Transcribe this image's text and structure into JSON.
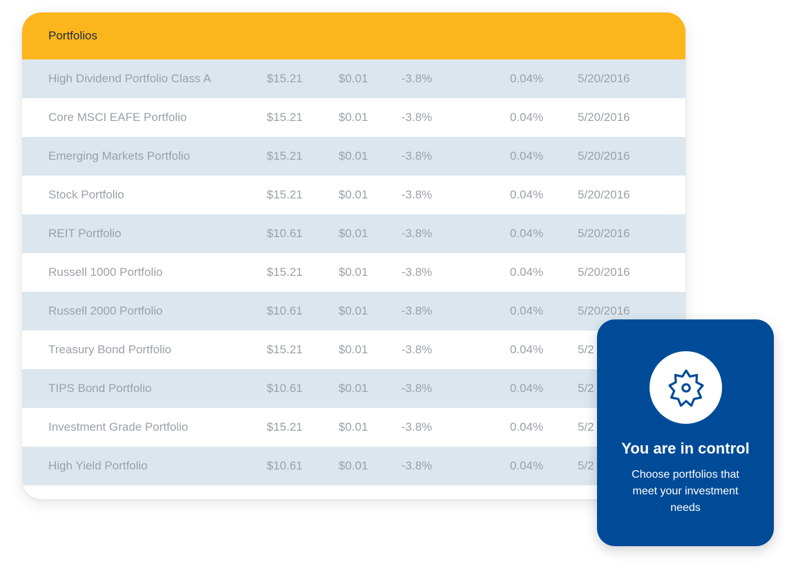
{
  "table": {
    "title": "Portfolios",
    "rows": [
      {
        "name": "High Dividend Portfolio Class A",
        "price": "$15.21",
        "change": "$0.01",
        "pct": "-3.8%",
        "yield": "0.04%",
        "date": "5/20/2016"
      },
      {
        "name": "Core MSCI EAFE Portfolio",
        "price": "$15.21",
        "change": "$0.01",
        "pct": "-3.8%",
        "yield": "0.04%",
        "date": "5/20/2016"
      },
      {
        "name": "Emerging Markets Portfolio",
        "price": "$15.21",
        "change": "$0.01",
        "pct": "-3.8%",
        "yield": "0.04%",
        "date": "5/20/2016"
      },
      {
        "name": "Stock Portfolio",
        "price": "$15.21",
        "change": "$0.01",
        "pct": "-3.8%",
        "yield": "0.04%",
        "date": "5/20/2016"
      },
      {
        "name": "REIT Portfolio",
        "price": "$10.61",
        "change": "$0.01",
        "pct": "-3.8%",
        "yield": "0.04%",
        "date": "5/20/2016"
      },
      {
        "name": "Russell 1000 Portfolio",
        "price": "$15.21",
        "change": "$0.01",
        "pct": "-3.8%",
        "yield": "0.04%",
        "date": "5/20/2016"
      },
      {
        "name": "Russell 2000 Portfolio",
        "price": "$10.61",
        "change": "$0.01",
        "pct": "-3.8%",
        "yield": "0.04%",
        "date": "5/20/2016"
      },
      {
        "name": "Treasury Bond Portfolio",
        "price": "$15.21",
        "change": "$0.01",
        "pct": "-3.8%",
        "yield": "0.04%",
        "date": "5/2"
      },
      {
        "name": "TIPS Bond Portfolio",
        "price": "$10.61",
        "change": "$0.01",
        "pct": "-3.8%",
        "yield": "0.04%",
        "date": "5/2"
      },
      {
        "name": "Investment Grade Portfolio",
        "price": "$15.21",
        "change": "$0.01",
        "pct": "-3.8%",
        "yield": "0.04%",
        "date": "5/2"
      },
      {
        "name": "High Yield Portfolio",
        "price": "$10.61",
        "change": "$0.01",
        "pct": "-3.8%",
        "yield": "0.04%",
        "date": "5/2"
      }
    ]
  },
  "promo": {
    "icon": "gear-icon",
    "title": "You are in control",
    "text": "Choose portfolios that meet your investment needs"
  },
  "colors": {
    "header": "#fbb61d",
    "row_shade": "#dce6ef",
    "promo_bg": "#004b98",
    "text_muted": "#9aa1a8"
  }
}
